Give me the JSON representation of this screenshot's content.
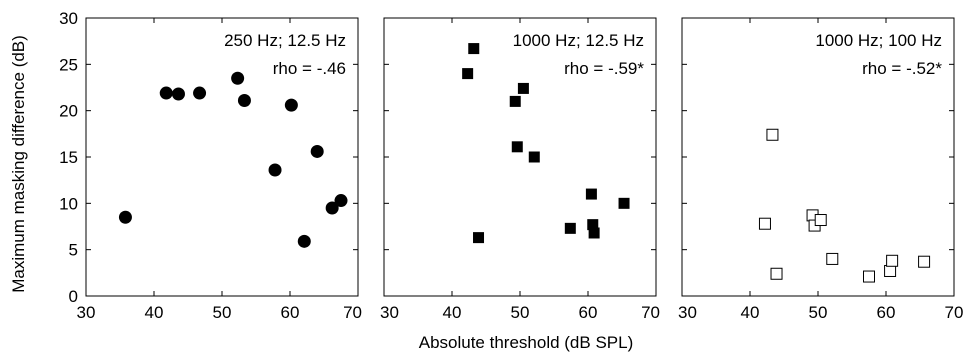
{
  "chart_data": {
    "type": "scatter",
    "shared": {
      "xlabel": "Absolute threshold (dB SPL)",
      "ylabel": "Maximum masking difference (dB)",
      "xlim": [
        30,
        70
      ],
      "ylim": [
        0,
        30
      ],
      "xticks": [
        "30",
        "40",
        "50",
        "60",
        "70"
      ],
      "yticks": [
        "0",
        "5",
        "10",
        "15",
        "20",
        "25",
        "30"
      ],
      "grid": false
    },
    "panels": [
      {
        "title": "250 Hz; 12.5 Hz",
        "annotation": "rho = -.46",
        "marker": "filled-circle",
        "points": [
          {
            "x": 35.8,
            "y": 8.5
          },
          {
            "x": 41.8,
            "y": 21.9
          },
          {
            "x": 43.6,
            "y": 21.8
          },
          {
            "x": 46.7,
            "y": 21.9
          },
          {
            "x": 52.3,
            "y": 23.5
          },
          {
            "x": 53.3,
            "y": 21.1
          },
          {
            "x": 57.8,
            "y": 13.6
          },
          {
            "x": 60.2,
            "y": 20.6
          },
          {
            "x": 62.1,
            "y": 5.9
          },
          {
            "x": 64.0,
            "y": 15.6
          },
          {
            "x": 66.2,
            "y": 9.5
          },
          {
            "x": 67.5,
            "y": 10.3
          }
        ]
      },
      {
        "title": "1000 Hz; 12.5 Hz",
        "annotation": "rho = -.59*",
        "marker": "filled-square",
        "points": [
          {
            "x": 42.3,
            "y": 24.0
          },
          {
            "x": 43.2,
            "y": 26.7
          },
          {
            "x": 43.9,
            "y": 6.3
          },
          {
            "x": 49.3,
            "y": 21.0
          },
          {
            "x": 49.6,
            "y": 16.1
          },
          {
            "x": 50.5,
            "y": 22.4
          },
          {
            "x": 52.1,
            "y": 15.0
          },
          {
            "x": 57.4,
            "y": 7.3
          },
          {
            "x": 60.5,
            "y": 11.0
          },
          {
            "x": 60.7,
            "y": 7.7
          },
          {
            "x": 60.9,
            "y": 6.8
          },
          {
            "x": 65.3,
            "y": 10.0
          }
        ]
      },
      {
        "title": "1000 Hz; 100 Hz",
        "annotation": "rho = -.52*",
        "marker": "open-square",
        "points": [
          {
            "x": 42.2,
            "y": 7.8
          },
          {
            "x": 43.3,
            "y": 17.4
          },
          {
            "x": 43.9,
            "y": 2.4
          },
          {
            "x": 49.2,
            "y": 8.7
          },
          {
            "x": 49.5,
            "y": 7.6
          },
          {
            "x": 50.4,
            "y": 8.2
          },
          {
            "x": 52.1,
            "y": 4.0
          },
          {
            "x": 57.5,
            "y": 2.1
          },
          {
            "x": 60.6,
            "y": 2.7
          },
          {
            "x": 60.9,
            "y": 3.8
          },
          {
            "x": 65.6,
            "y": 3.7
          }
        ]
      }
    ]
  }
}
